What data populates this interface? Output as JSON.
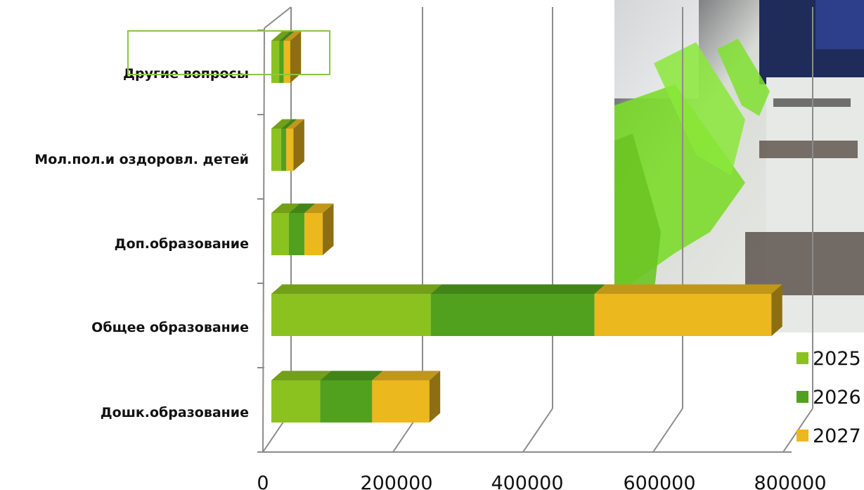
{
  "chart_data": {
    "type": "bar",
    "orientation": "horizontal",
    "stacked": true,
    "three_d": true,
    "categories": [
      "Дошк.образование",
      "Общее  образование",
      "Доп.образование",
      "Мол.пол.и оздоровл. детей",
      "Другие вопросы"
    ],
    "series": [
      {
        "name": "2025",
        "values": [
          75000,
          245000,
          27000,
          15000,
          12000
        ]
      },
      {
        "name": "2026",
        "values": [
          80000,
          252000,
          24000,
          8000,
          7000
        ]
      },
      {
        "name": "2027",
        "values": [
          88000,
          272000,
          28000,
          11000,
          10000
        ]
      }
    ],
    "x_ticks": [
      "0",
      "200000",
      "400000",
      "600000",
      "800000"
    ],
    "xlim": [
      0,
      800000
    ],
    "grid": true,
    "legend_position": "right",
    "colors": {
      "2025": "#8cc21f",
      "2026": "#52a11e",
      "2027": "#ebb81e",
      "highlight_box": "#8cc640",
      "axis": "#8c8c8c"
    }
  }
}
